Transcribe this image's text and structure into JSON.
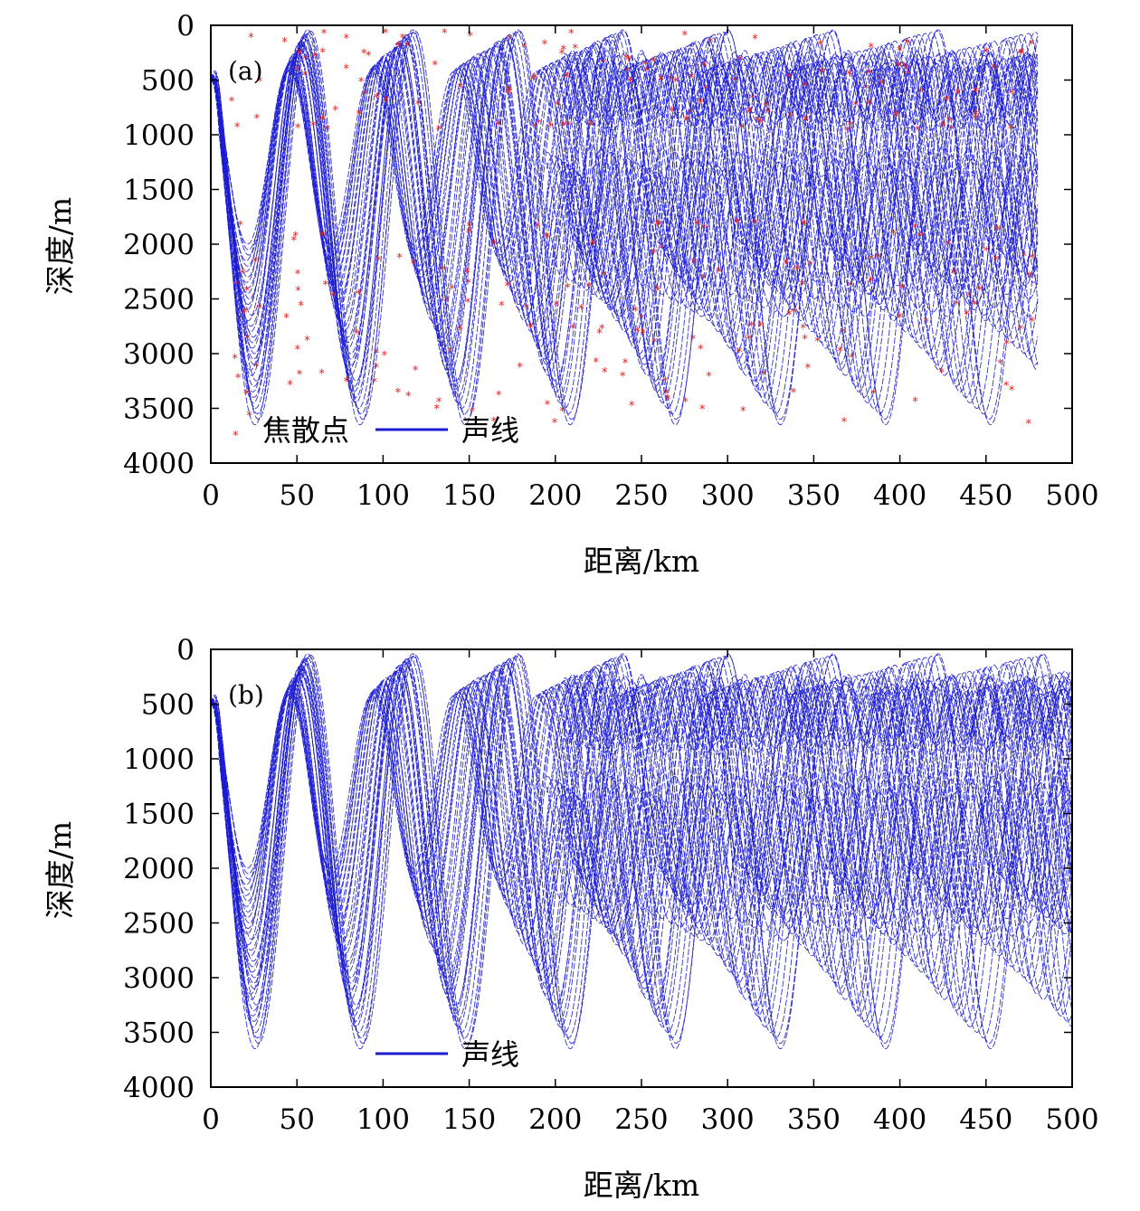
{
  "chart_data": [
    {
      "type": "line",
      "panel_label": "(a)",
      "xlabel": "距离/km",
      "ylabel": "深度/m",
      "xlim": [
        0,
        500
      ],
      "ylim": [
        0,
        4000
      ],
      "y_inverted": true,
      "x_ticks": [
        "0",
        "50",
        "100",
        "150",
        "200",
        "250",
        "300",
        "350",
        "400",
        "450",
        "500"
      ],
      "y_ticks": [
        "0",
        "500",
        "1000",
        "1500",
        "2000",
        "2500",
        "3000",
        "3500",
        "4000"
      ],
      "legend": [
        {
          "label": "焦散点",
          "marker": "*",
          "color": "#e0201c"
        },
        {
          "label": "声线",
          "line": "solid",
          "color": "#1c1cd0"
        }
      ],
      "ray_range_km": 480,
      "source_depth_m": 500,
      "series": [
        {
          "name": "声线",
          "description": "ray family",
          "ray_families": [
            {
              "turn_depth_m": 2000,
              "top_depth_m": 400,
              "cycle_km": 50
            },
            {
              "turn_depth_m": 3450,
              "top_depth_m": 50,
              "cycle_km": 60
            }
          ]
        },
        {
          "name": "焦散点",
          "marker": "*",
          "caustic_ranges_km": [
            15,
            25,
            47,
            55,
            70,
            85,
            97,
            115,
            135,
            150,
            170,
            185,
            200,
            210,
            225,
            245,
            255,
            265,
            280,
            290,
            310,
            320,
            340,
            350,
            370,
            385,
            400,
            410,
            430,
            445,
            460,
            475
          ]
        }
      ]
    },
    {
      "type": "line",
      "panel_label": "(b)",
      "xlabel": "距离/km",
      "ylabel": "深度/m",
      "xlim": [
        0,
        500
      ],
      "ylim": [
        0,
        4000
      ],
      "y_inverted": true,
      "x_ticks": [
        "0",
        "50",
        "100",
        "150",
        "200",
        "250",
        "300",
        "350",
        "400",
        "450",
        "500"
      ],
      "y_ticks": [
        "0",
        "500",
        "1000",
        "1500",
        "2000",
        "2500",
        "3000",
        "3500",
        "4000"
      ],
      "legend": [
        {
          "label": "声线",
          "line": "solid",
          "color": "#1c1cd0"
        }
      ],
      "ray_range_km": 500,
      "source_depth_m": 500,
      "series": [
        {
          "name": "声线",
          "description": "ray family",
          "ray_families": [
            {
              "turn_depth_m": 2000,
              "top_depth_m": 400,
              "cycle_km": 50
            },
            {
              "turn_depth_m": 3450,
              "top_depth_m": 50,
              "cycle_km": 60
            }
          ]
        }
      ]
    }
  ]
}
